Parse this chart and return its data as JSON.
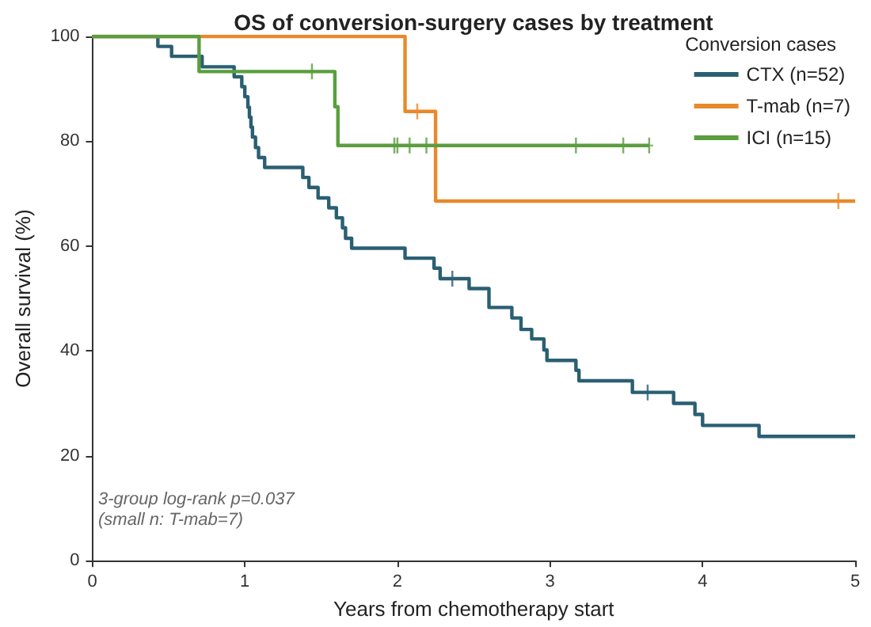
{
  "chart_data": {
    "type": "step",
    "title": "OS of conversion-surgery cases by treatment",
    "xlabel": "Years from chemotherapy start",
    "ylabel": "Overall survival (%)",
    "legend_title": "Conversion cases",
    "legend": "top right",
    "grid": false,
    "marker": "none",
    "xlim": [
      0,
      5
    ],
    "xticks": [
      0,
      1,
      2,
      3,
      4,
      5
    ],
    "ylim": [
      0,
      100
    ],
    "yticks": [
      0,
      20,
      40,
      60,
      80,
      100
    ],
    "annotations": [
      "3-group log-rank p=0.037",
      "(small n: T-mab=7)"
    ],
    "series": [
      {
        "name": "CTX (n=52)",
        "color": "#2a5f73",
        "x": [
          0,
          0.43,
          0.52,
          0.72,
          0.93,
          0.98,
          1.0,
          1.02,
          1.03,
          1.04,
          1.05,
          1.07,
          1.09,
          1.13,
          1.38,
          1.42,
          1.48,
          1.55,
          1.6,
          1.64,
          1.66,
          1.7,
          2.05,
          2.24,
          2.28,
          2.47,
          2.6,
          2.75,
          2.81,
          2.88,
          2.96,
          2.98,
          3.17,
          3.19,
          3.54,
          3.81,
          3.95,
          4.0,
          4.37,
          5
        ],
        "values": [
          100,
          98.1,
          96.2,
          94.2,
          92.3,
          90.4,
          88.5,
          86.5,
          84.6,
          82.7,
          80.8,
          78.8,
          76.9,
          75.0,
          73.1,
          71.2,
          69.2,
          67.3,
          65.4,
          63.5,
          61.5,
          59.6,
          57.7,
          55.8,
          53.8,
          51.9,
          48.3,
          46.3,
          44.1,
          42.3,
          40.2,
          38.2,
          36.3,
          34.3,
          32.1,
          30.0,
          27.9,
          25.8,
          23.7,
          23.7
        ]
      },
      {
        "name": "T-mab (n=7)",
        "color": "#e8892a",
        "x": [
          0,
          2.05,
          2.25,
          5
        ],
        "values": [
          100,
          85.7,
          68.6,
          68.6
        ]
      },
      {
        "name": "ICI (n=15)",
        "color": "#5a9e3e",
        "x": [
          0,
          0.7,
          1.59,
          1.61,
          3.65
        ],
        "values": [
          100,
          93.3,
          86.6,
          79.2,
          79.2
        ]
      },
      {
        "type": "scatter",
        "marker": "cross",
        "color": "#2a5f73",
        "x": [
          2.36,
          3.64
        ],
        "values": [
          53.8,
          32.1
        ]
      },
      {
        "type": "scatter",
        "marker": "cross",
        "color": "#e8892a",
        "x": [
          2.13,
          4.89
        ],
        "values": [
          85.7,
          68.6
        ]
      },
      {
        "type": "scatter",
        "marker": "cross",
        "color": "#5a9e3e",
        "x": [
          1.44,
          1.98,
          2.0,
          2.08,
          2.19,
          3.17,
          3.48,
          3.65
        ],
        "values": [
          93.3,
          79.2,
          79.2,
          79.2,
          79.2,
          79.2,
          79.2,
          79.2
        ]
      }
    ]
  }
}
